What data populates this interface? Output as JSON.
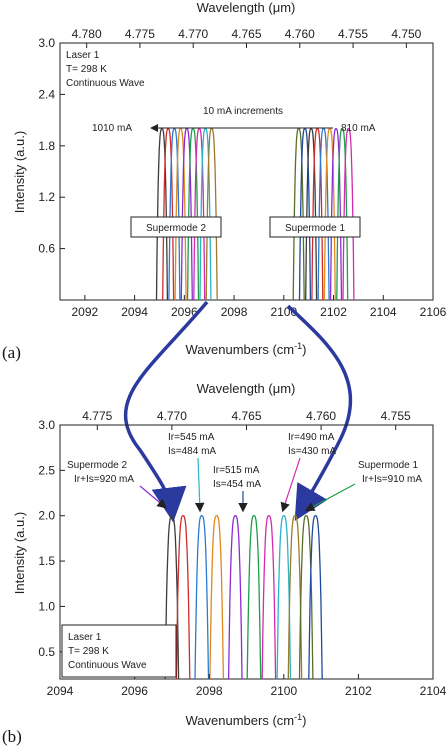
{
  "chart_data": [
    {
      "type": "line",
      "panel_label": "(a)",
      "xlabel": "Wavenumbers (cm",
      "xlabel_sup": "-1",
      "xlabel_end": ")",
      "top_xlabel": "Wavelength (",
      "top_xlabel_mu": "μm",
      "top_xlabel_end": ")",
      "ylabel": "Intensity (a.u.)",
      "xlim": [
        2091,
        2106
      ],
      "ylim": [
        0,
        3.0
      ],
      "x_ticks": [
        "2092",
        "2094",
        "2096",
        "2098",
        "2100",
        "2102",
        "2104",
        "2106"
      ],
      "y_ticks": [
        "0.6",
        "1.2",
        "1.8",
        "2.4",
        "3.0"
      ],
      "top_ticks": [
        "4.780",
        "4.775",
        "4.770",
        "4.765",
        "4.760",
        "4.755",
        "4.750"
      ],
      "legend_lines": [
        "Laser 1",
        "T= 298 K",
        "Continuous Wave"
      ],
      "annotations": {
        "increments": "10 mA increments",
        "left_current": "1010 mA",
        "right_current": "810 mA",
        "supermode2": "Supermode 2",
        "supermode1": "Supermode 1"
      },
      "series_groups": [
        {
          "label": "Supermode 2",
          "peak_centers": [
            2095.1,
            2095.35,
            2095.6,
            2095.85,
            2096.1,
            2096.35,
            2096.6,
            2096.85,
            2097.1
          ],
          "peak_height": 2.0
        },
        {
          "label": "Supermode 1",
          "peak_centers": [
            2100.6,
            2100.85,
            2101.1,
            2101.35,
            2101.6,
            2101.85,
            2102.1,
            2102.35,
            2102.6
          ],
          "peak_height": 2.0
        }
      ]
    },
    {
      "type": "line",
      "panel_label": "(b)",
      "xlabel": "Wavenumbers (cm",
      "xlabel_sup": "-1",
      "xlabel_end": ")",
      "top_xlabel": "Wavelength (",
      "top_xlabel_mu": "μm",
      "top_xlabel_end": ")",
      "ylabel": "Intensity (a.u.)",
      "xlim": [
        2094,
        2104
      ],
      "ylim": [
        0.2,
        3.0
      ],
      "x_ticks": [
        "2094",
        "2096",
        "2098",
        "2100",
        "2102",
        "2104"
      ],
      "y_ticks": [
        "0.5",
        "1.0",
        "1.5",
        "2.0",
        "2.5",
        "3.0"
      ],
      "top_ticks": [
        "4.775",
        "4.770",
        "4.765",
        "4.760",
        "4.755"
      ],
      "legend_lines": [
        "Laser 1",
        "T= 298 K",
        "Continuous Wave"
      ],
      "annotations": {
        "sm2_title": "Supermode 2",
        "sm2_sum": "Ir+Is=920 mA",
        "sm1_title": "Supermode 1",
        "sm1_sum": "Ir+Is=910 mA",
        "a1_r": "Ir=545 mA",
        "a1_s": "Is=484 mA",
        "a2_r": "Ir=515 mA",
        "a2_s": "Is=454 mA",
        "a3_r": "Ir=490 mA",
        "a3_s": "Is=430 mA"
      },
      "peak_centers": [
        2097.0,
        2097.3,
        2097.8,
        2098.2,
        2098.7,
        2099.2,
        2099.6,
        2100.0,
        2100.3,
        2100.6,
        2100.85
      ],
      "peak_height": 2.0
    }
  ],
  "colors": {
    "axis": "#222222",
    "arrow": "#2b3a9e",
    "peaks": [
      "#3c3c3c",
      "#d22b2b",
      "#2b7bd2",
      "#e08a1e",
      "#8c2bd2",
      "#1e9e4b",
      "#d22bb0",
      "#2bb3c8",
      "#9e7a2b",
      "#5a6e2b",
      "#1e4a9e"
    ]
  }
}
